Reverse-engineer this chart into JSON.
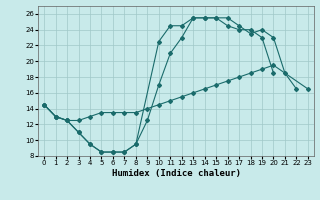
{
  "xlabel": "Humidex (Indice chaleur)",
  "background_color": "#c8eaea",
  "grid_color": "#a0c8c8",
  "line_color": "#1a6b6b",
  "xlim": [
    -0.5,
    23.5
  ],
  "ylim": [
    8,
    27
  ],
  "xticks": [
    0,
    1,
    2,
    3,
    4,
    5,
    6,
    7,
    8,
    9,
    10,
    11,
    12,
    13,
    14,
    15,
    16,
    17,
    18,
    19,
    20,
    21,
    22,
    23
  ],
  "yticks": [
    8,
    10,
    12,
    14,
    16,
    18,
    20,
    22,
    24,
    26
  ],
  "line1_x": [
    0,
    1,
    2,
    3,
    4,
    5,
    6,
    7,
    8,
    10,
    11,
    12,
    13,
    14,
    15,
    16,
    17,
    18,
    19,
    20,
    21,
    22
  ],
  "line1_y": [
    14.5,
    13,
    12.5,
    11,
    9.5,
    8.5,
    8.5,
    8.5,
    9.5,
    22.5,
    24.5,
    24.5,
    25.5,
    25.5,
    25.5,
    25.5,
    24.5,
    23.5,
    24,
    23,
    18.5,
    16.5
  ],
  "line2_x": [
    0,
    1,
    2,
    3,
    4,
    5,
    6,
    7,
    8,
    9,
    10,
    11,
    12,
    13,
    14,
    15,
    16,
    17,
    18,
    19,
    20
  ],
  "line2_y": [
    14.5,
    13,
    12.5,
    11,
    9.5,
    8.5,
    8.5,
    8.5,
    9.5,
    12.5,
    17,
    21,
    23,
    25.5,
    25.5,
    25.5,
    24.5,
    24,
    24,
    23,
    18.5
  ],
  "line3_x": [
    0,
    1,
    2,
    3,
    4,
    5,
    6,
    7,
    8,
    9,
    10,
    11,
    12,
    13,
    14,
    15,
    16,
    17,
    18,
    19,
    20,
    23
  ],
  "line3_y": [
    14.5,
    13,
    12.5,
    12.5,
    13,
    13.5,
    13.5,
    13.5,
    13.5,
    14,
    14.5,
    15,
    15.5,
    16,
    16.5,
    17,
    17.5,
    18,
    18.5,
    19,
    19.5,
    16.5
  ]
}
